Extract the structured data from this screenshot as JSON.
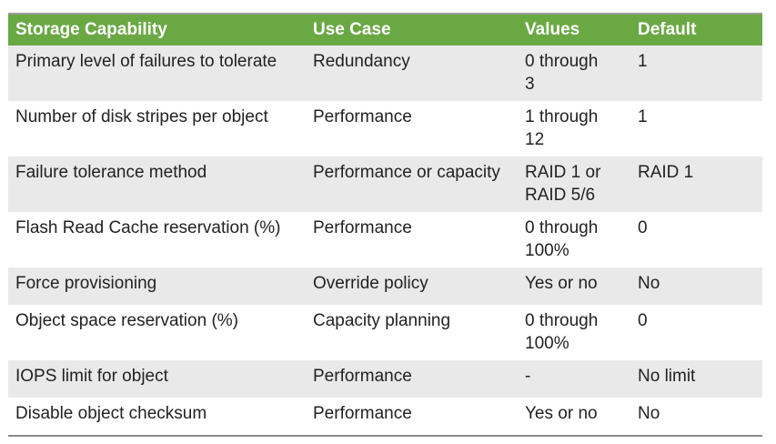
{
  "table": {
    "header": [
      "Storage Capability",
      "Use Case",
      "Values",
      "Default"
    ],
    "rows": [
      [
        "Primary level of failures to tolerate",
        "Redundancy",
        "0 through 3",
        "1"
      ],
      [
        "Number of disk stripes per object",
        "Performance",
        "1 through 12",
        "1"
      ],
      [
        "Failure tolerance method",
        "Performance or capacity",
        "RAID 1 or RAID 5/6",
        "RAID 1"
      ],
      [
        "Flash Read Cache reservation (%)",
        "Performance",
        "0 through 100%",
        "0"
      ],
      [
        "Force provisioning",
        "Override policy",
        "Yes or no",
        "No"
      ],
      [
        "Object space reservation (%)",
        "Capacity planning",
        "0 through 100%",
        "0"
      ],
      [
        "IOPS limit for object",
        "Performance",
        "-",
        "No limit"
      ],
      [
        "Disable object checksum",
        "Performance",
        "Yes or no",
        "No"
      ]
    ]
  }
}
